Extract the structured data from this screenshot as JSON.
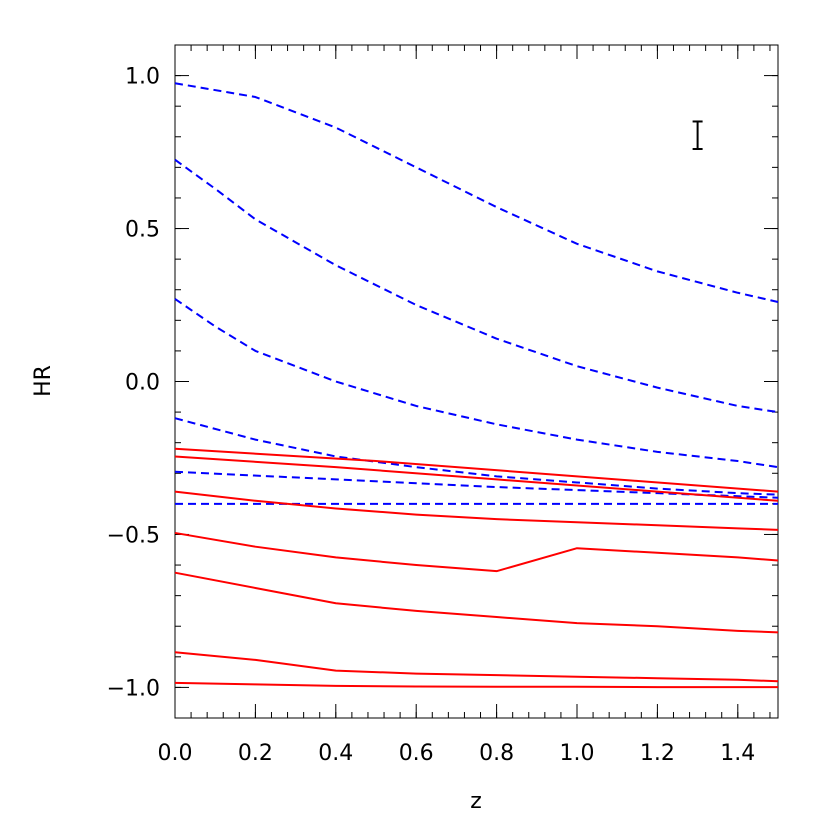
{
  "chart_data": {
    "type": "line",
    "xlabel": "z",
    "ylabel": "HR",
    "xlim": [
      0.0,
      1.5
    ],
    "ylim": [
      -1.1,
      1.1
    ],
    "x_ticks": [
      0.0,
      0.2,
      0.4,
      0.6,
      0.8,
      1.0,
      1.2,
      1.4
    ],
    "x_tick_labels": [
      "0.0",
      "0.2",
      "0.4",
      "0.6",
      "0.8",
      "1.0",
      "1.2",
      "1.4"
    ],
    "y_ticks": [
      -1.0,
      -0.5,
      0.0,
      0.5,
      1.0
    ],
    "y_tick_labels": [
      "−1.0",
      "−0.5",
      "0.0",
      "0.5",
      "1.0"
    ],
    "x_minor_step": 0.04,
    "y_minor_step": 0.1,
    "error_bar": {
      "x": 1.3,
      "y_low": 0.76,
      "y_high": 0.85
    },
    "series": [
      {
        "style": "dashed",
        "color": "#0000ff",
        "x": [
          0,
          0.2,
          0.4,
          0.6,
          0.8,
          1.0,
          1.2,
          1.4,
          1.5
        ],
        "y": [
          0.975,
          0.93,
          0.83,
          0.7,
          0.57,
          0.45,
          0.36,
          0.29,
          0.26
        ]
      },
      {
        "style": "dashed",
        "color": "#0000ff",
        "x": [
          0,
          0.1,
          0.2,
          0.4,
          0.6,
          0.8,
          1.0,
          1.2,
          1.4,
          1.5
        ],
        "y": [
          0.725,
          0.63,
          0.53,
          0.38,
          0.25,
          0.14,
          0.05,
          -0.02,
          -0.08,
          -0.1
        ]
      },
      {
        "style": "dashed",
        "color": "#0000ff",
        "x": [
          0,
          0.1,
          0.2,
          0.4,
          0.6,
          0.8,
          1.0,
          1.2,
          1.4,
          1.5
        ],
        "y": [
          0.27,
          0.18,
          0.1,
          -0.0,
          -0.08,
          -0.14,
          -0.19,
          -0.23,
          -0.26,
          -0.28
        ]
      },
      {
        "style": "dashed",
        "color": "#0000ff",
        "x": [
          0,
          0.2,
          0.4,
          0.6,
          0.8,
          1.0,
          1.2,
          1.4,
          1.5
        ],
        "y": [
          -0.12,
          -0.19,
          -0.245,
          -0.28,
          -0.31,
          -0.33,
          -0.35,
          -0.365,
          -0.37
        ]
      },
      {
        "style": "dashed",
        "color": "#0000ff",
        "x": [
          0,
          0.4,
          0.8,
          1.2,
          1.5
        ],
        "y": [
          -0.295,
          -0.32,
          -0.345,
          -0.365,
          -0.38
        ]
      },
      {
        "style": "dashed",
        "color": "#0000ff",
        "x": [
          0,
          0.5,
          1.0,
          1.5
        ],
        "y": [
          -0.4,
          -0.4,
          -0.4,
          -0.4
        ]
      },
      {
        "style": "solid",
        "color": "#ff0000",
        "x": [
          0,
          0.5,
          1.0,
          1.5
        ],
        "y": [
          -0.22,
          -0.26,
          -0.31,
          -0.36
        ]
      },
      {
        "style": "solid",
        "color": "#ff0000",
        "x": [
          0,
          0.4,
          0.8,
          1.2,
          1.5
        ],
        "y": [
          -0.245,
          -0.28,
          -0.32,
          -0.36,
          -0.39
        ]
      },
      {
        "style": "solid",
        "color": "#ff0000",
        "x": [
          0,
          0.2,
          0.4,
          0.6,
          0.8,
          1.0,
          1.2,
          1.4,
          1.5
        ],
        "y": [
          -0.36,
          -0.39,
          -0.415,
          -0.435,
          -0.45,
          -0.46,
          -0.47,
          -0.48,
          -0.485
        ]
      },
      {
        "style": "solid",
        "color": "#ff0000",
        "x": [
          0,
          0.2,
          0.4,
          0.6,
          0.8,
          1.0,
          1.2,
          1.4,
          1.5
        ],
        "y": [
          -0.495,
          -0.54,
          -0.575,
          -0.6,
          -0.62,
          -0.545,
          -0.56,
          -0.575,
          -0.585
        ]
      },
      {
        "style": "solid",
        "color": "#ff0000",
        "x": [
          0,
          0.2,
          0.4,
          0.6,
          0.8,
          1.0,
          1.2,
          1.4,
          1.5
        ],
        "y": [
          -0.625,
          -0.675,
          -0.725,
          -0.75,
          -0.77,
          -0.79,
          -0.8,
          -0.815,
          -0.82
        ]
      },
      {
        "style": "solid",
        "color": "#ff0000",
        "x": [
          0,
          0.2,
          0.4,
          0.6,
          0.8,
          1.0,
          1.2,
          1.4,
          1.5
        ],
        "y": [
          -0.885,
          -0.91,
          -0.945,
          -0.955,
          -0.96,
          -0.965,
          -0.97,
          -0.975,
          -0.98
        ]
      },
      {
        "style": "solid",
        "color": "#ff0000",
        "x": [
          0,
          0.2,
          0.4,
          0.6,
          0.8,
          1.0,
          1.2,
          1.4,
          1.5
        ],
        "y": [
          -0.985,
          -0.99,
          -0.995,
          -0.997,
          -0.998,
          -0.998,
          -0.999,
          -0.999,
          -0.999
        ]
      }
    ]
  }
}
